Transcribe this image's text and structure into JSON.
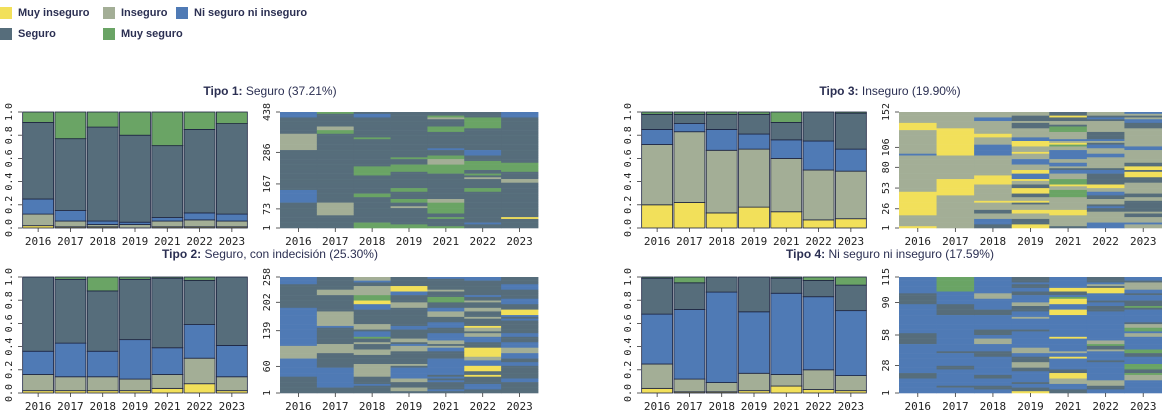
{
  "legend": {
    "items": [
      {
        "label": "Muy inseguro",
        "color": "#f2e05a"
      },
      {
        "label": "Inseguro",
        "color": "#a3ae96"
      },
      {
        "label": "Ni seguro ni inseguro",
        "color": "#4f7ab5"
      },
      {
        "label": "Seguro",
        "color": "#566d7b"
      },
      {
        "label": "Muy seguro",
        "color": "#6aa465"
      }
    ]
  },
  "chart_data": [
    {
      "type": "bar",
      "stacked": true,
      "title_bold": "Tipo 1:",
      "title_rest": "Seguro (37.21%)",
      "categories": [
        "2016",
        "2017",
        "2018",
        "2019",
        "2021",
        "2022",
        "2023"
      ],
      "ylim": [
        0,
        1
      ],
      "yticks": [
        "0.0",
        "0.2",
        "0.4",
        "0.6",
        "0.8",
        "1.0"
      ],
      "series": [
        {
          "name": "Muy inseguro",
          "values": [
            0.02,
            0.01,
            0.01,
            0.0,
            0.01,
            0.01,
            0.01
          ]
        },
        {
          "name": "Inseguro",
          "values": [
            0.1,
            0.05,
            0.02,
            0.03,
            0.05,
            0.06,
            0.05
          ]
        },
        {
          "name": "Ni seguro ni inseguro",
          "values": [
            0.13,
            0.09,
            0.03,
            0.02,
            0.03,
            0.06,
            0.06
          ]
        },
        {
          "name": "Seguro",
          "values": [
            0.66,
            0.62,
            0.81,
            0.75,
            0.62,
            0.72,
            0.78
          ]
        },
        {
          "name": "Muy seguro",
          "values": [
            0.09,
            0.23,
            0.13,
            0.2,
            0.29,
            0.15,
            0.1
          ]
        }
      ],
      "sequence_index_ticks": [
        "1",
        "73",
        "167",
        "286",
        "438"
      ]
    },
    {
      "type": "bar",
      "stacked": true,
      "title_bold": "Tipo 2:",
      "title_rest": "Seguro, con indecisión (25.30%)",
      "categories": [
        "2016",
        "2017",
        "2018",
        "2019",
        "2021",
        "2022",
        "2023"
      ],
      "ylim": [
        0,
        1
      ],
      "yticks": [
        "0.0",
        "0.2",
        "0.4",
        "0.6",
        "0.8",
        "1.0"
      ],
      "series": [
        {
          "name": "Muy inseguro",
          "values": [
            0.02,
            0.02,
            0.02,
            0.02,
            0.04,
            0.08,
            0.02
          ]
        },
        {
          "name": "Inseguro",
          "values": [
            0.14,
            0.12,
            0.12,
            0.1,
            0.12,
            0.22,
            0.12
          ]
        },
        {
          "name": "Ni seguro ni inseguro",
          "values": [
            0.2,
            0.29,
            0.22,
            0.34,
            0.23,
            0.29,
            0.27
          ]
        },
        {
          "name": "Seguro",
          "values": [
            0.64,
            0.55,
            0.52,
            0.52,
            0.6,
            0.38,
            0.59
          ]
        },
        {
          "name": "Muy seguro",
          "values": [
            0.0,
            0.02,
            0.12,
            0.02,
            0.01,
            0.03,
            0.0
          ]
        }
      ],
      "sequence_index_ticks": [
        "1",
        "60",
        "139",
        "202",
        "258"
      ]
    },
    {
      "type": "bar",
      "stacked": true,
      "title_bold": "Tipo 3:",
      "title_rest": "Inseguro (19.90%)",
      "categories": [
        "2016",
        "2017",
        "2018",
        "2019",
        "2021",
        "2022",
        "2023"
      ],
      "ylim": [
        0,
        1
      ],
      "yticks": [
        "0.0",
        "0.2",
        "0.4",
        "0.6",
        "0.8",
        "1.0"
      ],
      "series": [
        {
          "name": "Muy inseguro",
          "values": [
            0.2,
            0.22,
            0.13,
            0.18,
            0.14,
            0.07,
            0.08
          ]
        },
        {
          "name": "Inseguro",
          "values": [
            0.52,
            0.61,
            0.54,
            0.5,
            0.46,
            0.43,
            0.41
          ]
        },
        {
          "name": "Ni seguro ni inseguro",
          "values": [
            0.13,
            0.07,
            0.18,
            0.13,
            0.16,
            0.25,
            0.19
          ]
        },
        {
          "name": "Seguro",
          "values": [
            0.13,
            0.08,
            0.13,
            0.17,
            0.15,
            0.25,
            0.31
          ]
        },
        {
          "name": "Muy seguro",
          "values": [
            0.02,
            0.02,
            0.02,
            0.02,
            0.09,
            0.0,
            0.01
          ]
        }
      ],
      "sequence_index_ticks": [
        "1",
        "26",
        "53",
        "80",
        "106",
        "152"
      ]
    },
    {
      "type": "bar",
      "stacked": true,
      "title_bold": "Tipo 4:",
      "title_rest": "Ni seguro ni inseguro (17.59%)",
      "categories": [
        "2016",
        "2017",
        "2018",
        "2019",
        "2021",
        "2022",
        "2023"
      ],
      "ylim": [
        0,
        1
      ],
      "yticks": [
        "0.0",
        "0.2",
        "0.4",
        "0.6",
        "0.8",
        "1.0"
      ],
      "series": [
        {
          "name": "Muy inseguro",
          "values": [
            0.04,
            0.01,
            0.01,
            0.02,
            0.06,
            0.03,
            0.02
          ]
        },
        {
          "name": "Inseguro",
          "values": [
            0.21,
            0.11,
            0.08,
            0.15,
            0.1,
            0.17,
            0.13
          ]
        },
        {
          "name": "Ni seguro ni inseguro",
          "values": [
            0.43,
            0.6,
            0.78,
            0.53,
            0.7,
            0.63,
            0.56
          ]
        },
        {
          "name": "Seguro",
          "values": [
            0.31,
            0.23,
            0.13,
            0.3,
            0.13,
            0.14,
            0.22
          ]
        },
        {
          "name": "Muy seguro",
          "values": [
            0.01,
            0.05,
            0.0,
            0.0,
            0.01,
            0.03,
            0.07
          ]
        }
      ],
      "sequence_index_ticks": [
        "1",
        "28",
        "58",
        "90",
        "115"
      ]
    }
  ]
}
